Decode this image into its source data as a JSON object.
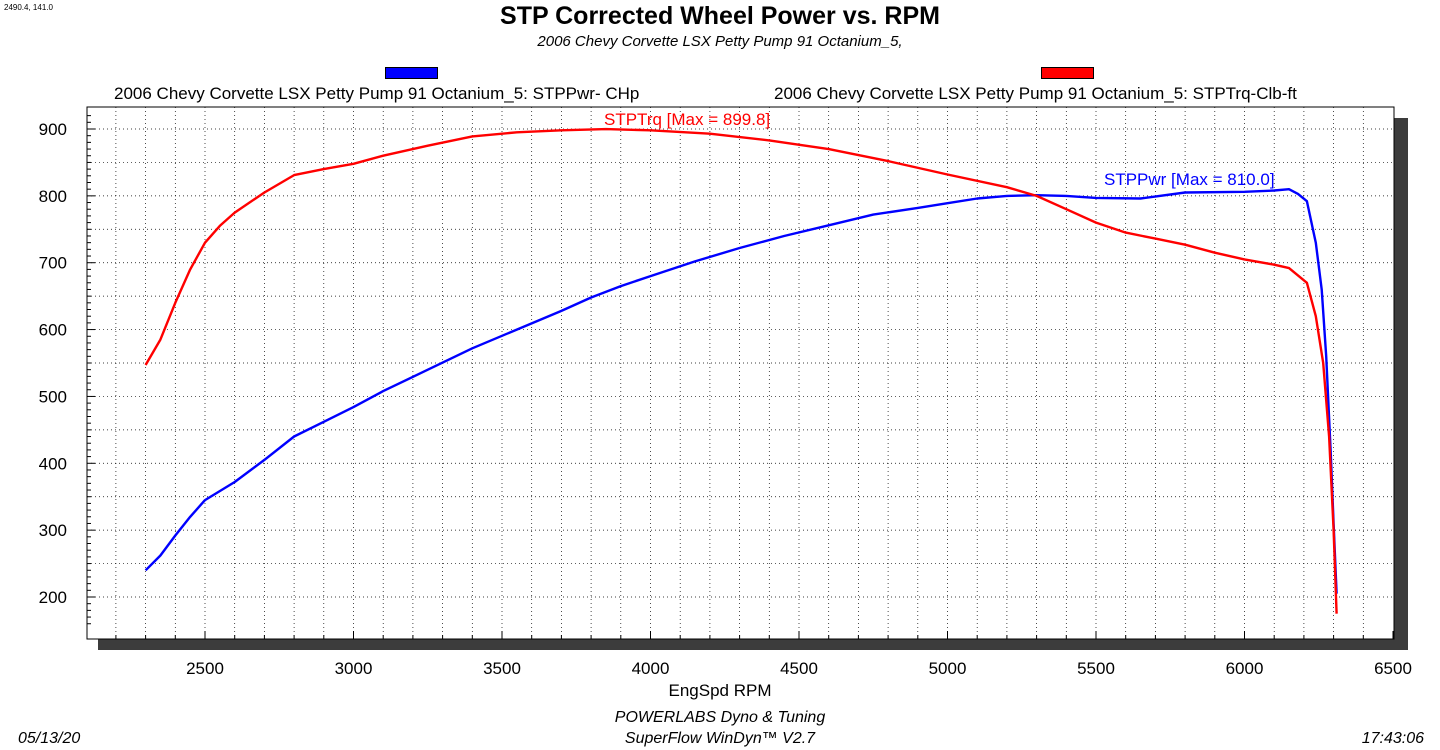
{
  "coord_readout": "2490.4, 141.0",
  "chart_data": {
    "type": "line",
    "title": "STP Corrected Wheel Power vs. RPM",
    "subtitle": "2006 Chevy Corvette LSX Petty Pump 91 Octanium_5,",
    "xlabel": "EngSpd  RPM",
    "ylabel": "",
    "xlim": [
      2100,
      6500
    ],
    "ylim": [
      150,
      925
    ],
    "x_ticks": [
      2500,
      3000,
      3500,
      4000,
      4500,
      5000,
      5500,
      6000,
      6500
    ],
    "y_ticks": [
      200,
      300,
      400,
      500,
      600,
      700,
      800,
      900
    ],
    "grid": "dotted",
    "legend_placement": "top",
    "series": [
      {
        "name": "2006 Chevy Corvette LSX Petty Pump 91 Octanium_5: STPPwr- CHp",
        "color": "#0000ff",
        "label": "STPPwr [Max = 810.0]",
        "points": [
          [
            2300,
            240
          ],
          [
            2350,
            262
          ],
          [
            2400,
            292
          ],
          [
            2450,
            320
          ],
          [
            2500,
            345
          ],
          [
            2600,
            372
          ],
          [
            2700,
            405
          ],
          [
            2800,
            440
          ],
          [
            2900,
            462
          ],
          [
            3000,
            484
          ],
          [
            3100,
            508
          ],
          [
            3250,
            540
          ],
          [
            3400,
            572
          ],
          [
            3550,
            600
          ],
          [
            3700,
            628
          ],
          [
            3800,
            648
          ],
          [
            3900,
            665
          ],
          [
            4000,
            680
          ],
          [
            4150,
            702
          ],
          [
            4300,
            722
          ],
          [
            4450,
            740
          ],
          [
            4600,
            756
          ],
          [
            4750,
            772
          ],
          [
            4900,
            782
          ],
          [
            5000,
            789
          ],
          [
            5100,
            796
          ],
          [
            5200,
            800
          ],
          [
            5300,
            801
          ],
          [
            5400,
            800
          ],
          [
            5500,
            797
          ],
          [
            5650,
            796
          ],
          [
            5800,
            805
          ],
          [
            6000,
            806
          ],
          [
            6100,
            808
          ],
          [
            6150,
            810
          ],
          [
            6180,
            803
          ],
          [
            6210,
            792
          ],
          [
            6240,
            730
          ],
          [
            6260,
            660
          ],
          [
            6275,
            560
          ],
          [
            6290,
            420
          ],
          [
            6300,
            310
          ],
          [
            6310,
            205
          ]
        ]
      },
      {
        "name": "2006 Chevy Corvette LSX Petty Pump 91 Octanium_5: STPTrq-Clb-ft",
        "color": "#ff0000",
        "label": "STPTrq [Max = 899.8]",
        "points": [
          [
            2300,
            547
          ],
          [
            2350,
            585
          ],
          [
            2400,
            640
          ],
          [
            2450,
            690
          ],
          [
            2500,
            730
          ],
          [
            2550,
            755
          ],
          [
            2600,
            775
          ],
          [
            2700,
            805
          ],
          [
            2800,
            831
          ],
          [
            2900,
            840
          ],
          [
            3000,
            848
          ],
          [
            3100,
            860
          ],
          [
            3250,
            875
          ],
          [
            3400,
            889
          ],
          [
            3550,
            895
          ],
          [
            3700,
            898
          ],
          [
            3850,
            899.8
          ],
          [
            4000,
            898
          ],
          [
            4200,
            893
          ],
          [
            4400,
            883
          ],
          [
            4600,
            870
          ],
          [
            4800,
            852
          ],
          [
            5000,
            832
          ],
          [
            5200,
            813
          ],
          [
            5300,
            800
          ],
          [
            5400,
            780
          ],
          [
            5500,
            760
          ],
          [
            5600,
            745
          ],
          [
            5700,
            736
          ],
          [
            5800,
            727
          ],
          [
            5900,
            715
          ],
          [
            6000,
            705
          ],
          [
            6100,
            697
          ],
          [
            6150,
            692
          ],
          [
            6210,
            670
          ],
          [
            6240,
            620
          ],
          [
            6265,
            550
          ],
          [
            6285,
            440
          ],
          [
            6300,
            300
          ],
          [
            6310,
            175
          ]
        ]
      }
    ]
  },
  "footer": {
    "company": "POWERLABS Dyno & Tuning",
    "software": "SuperFlow WinDyn™ V2.7",
    "date": "05/13/20",
    "time": "17:43:06"
  }
}
